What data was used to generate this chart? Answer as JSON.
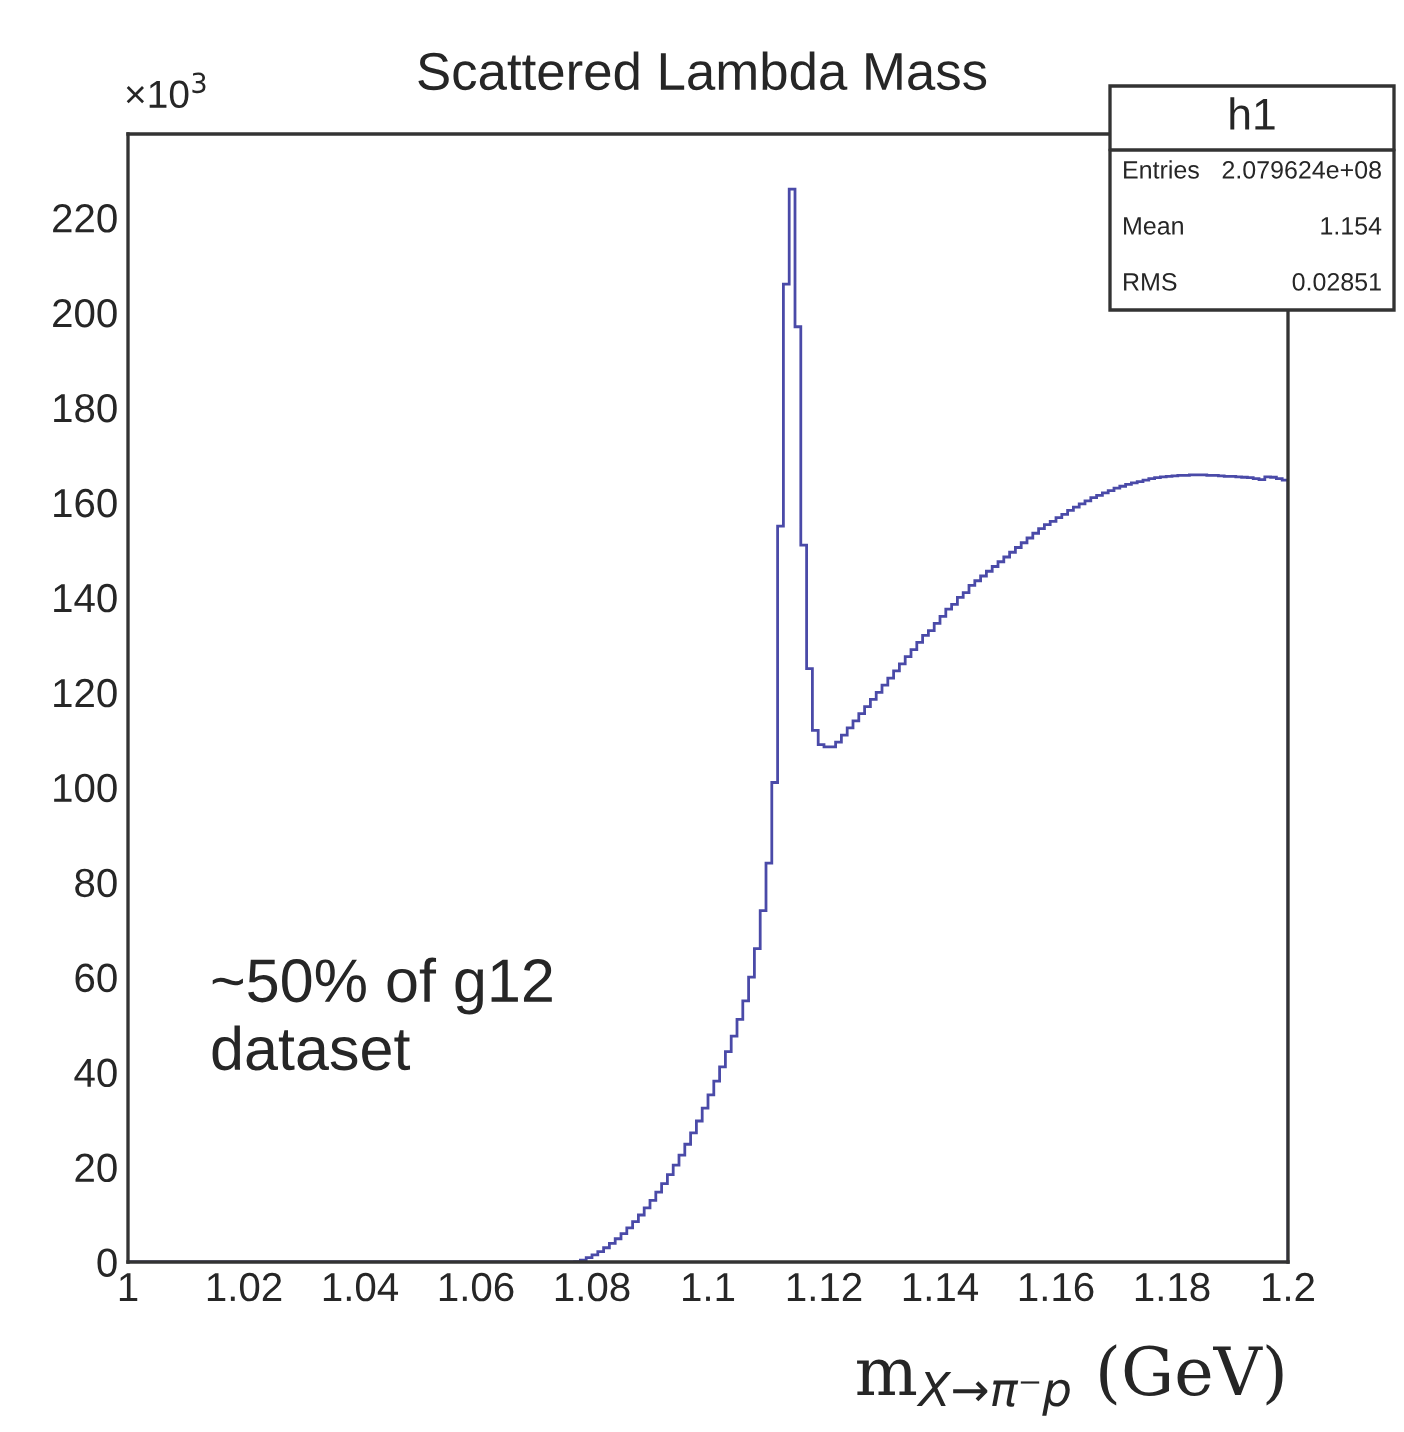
{
  "chart_data": {
    "type": "histogram",
    "title": "Scattered Lambda Mass",
    "xlabel": "m$_{X→π⁻p}$ (GeV)",
    "bins": [
      1.0,
      1.001,
      1.002,
      1.003,
      1.004,
      1.005,
      1.006,
      1.007,
      1.008,
      1.009,
      1.01,
      1.011,
      1.012,
      1.013,
      1.014,
      1.015,
      1.016,
      1.017,
      1.018,
      1.019,
      1.02,
      1.021,
      1.022,
      1.023,
      1.024,
      1.025,
      1.026,
      1.027,
      1.028,
      1.029,
      1.03,
      1.031,
      1.032,
      1.033,
      1.034,
      1.035,
      1.036,
      1.037,
      1.038,
      1.039,
      1.04,
      1.041,
      1.042,
      1.043,
      1.044,
      1.045,
      1.046,
      1.047,
      1.048,
      1.049,
      1.05,
      1.051,
      1.052,
      1.053,
      1.054,
      1.055,
      1.056,
      1.057,
      1.058,
      1.059,
      1.06,
      1.061,
      1.062,
      1.063,
      1.064,
      1.065,
      1.066,
      1.067,
      1.068,
      1.069,
      1.07,
      1.071,
      1.072,
      1.073,
      1.074,
      1.075,
      1.076,
      1.077,
      1.078,
      1.079,
      1.08,
      1.081,
      1.082,
      1.083,
      1.084,
      1.085,
      1.086,
      1.087,
      1.088,
      1.089,
      1.09,
      1.091,
      1.092,
      1.093,
      1.094,
      1.095,
      1.096,
      1.097,
      1.098,
      1.099,
      1.1,
      1.101,
      1.102,
      1.103,
      1.104,
      1.105,
      1.106,
      1.107,
      1.108,
      1.109,
      1.11,
      1.111,
      1.112,
      1.113,
      1.114,
      1.115,
      1.116,
      1.117,
      1.118,
      1.119,
      1.12,
      1.121,
      1.122,
      1.123,
      1.124,
      1.125,
      1.126,
      1.127,
      1.128,
      1.129,
      1.13,
      1.131,
      1.132,
      1.133,
      1.134,
      1.135,
      1.136,
      1.137,
      1.138,
      1.139,
      1.14,
      1.141,
      1.142,
      1.143,
      1.144,
      1.145,
      1.146,
      1.147,
      1.148,
      1.149,
      1.15,
      1.151,
      1.152,
      1.153,
      1.154,
      1.155,
      1.156,
      1.157,
      1.158,
      1.159,
      1.16,
      1.161,
      1.162,
      1.163,
      1.164,
      1.165,
      1.166,
      1.167,
      1.168,
      1.169,
      1.17,
      1.171,
      1.172,
      1.173,
      1.174,
      1.175,
      1.176,
      1.177,
      1.178,
      1.179,
      1.18,
      1.181,
      1.182,
      1.183,
      1.184,
      1.185,
      1.186,
      1.187,
      1.188,
      1.189,
      1.19,
      1.191,
      1.192,
      1.193,
      1.194,
      1.195,
      1.196,
      1.197,
      1.198,
      1.199,
      1.2
    ],
    "values": [
      0,
      0,
      0,
      0,
      0,
      0,
      0,
      0,
      0,
      0,
      0,
      0,
      0,
      0,
      0,
      0,
      0,
      0,
      0,
      0,
      0,
      0,
      0,
      0,
      0,
      0,
      0,
      0,
      0,
      0,
      0,
      0,
      0,
      0,
      0,
      0,
      0,
      0,
      0,
      0,
      0,
      0,
      0,
      0,
      0,
      0,
      0,
      0,
      0,
      0,
      0,
      0,
      0,
      0,
      0,
      0,
      0,
      0,
      0,
      0,
      0,
      0,
      0,
      0,
      0,
      0,
      0,
      0,
      0,
      0,
      0,
      0,
      0,
      0,
      0,
      0,
      0,
      0.1,
      0.4,
      0.9,
      1.5,
      2.2,
      3.0,
      3.9,
      4.9,
      6.0,
      7.2,
      8.5,
      9.9,
      11.4,
      13.0,
      14.7,
      16.5,
      18.4,
      20.4,
      22.5,
      24.8,
      27.2,
      29.7,
      32.4,
      35.2,
      38.1,
      41.1,
      44.3,
      47.6,
      51.1,
      55,
      60,
      66,
      74,
      84,
      101,
      155,
      206,
      226,
      197,
      151,
      125,
      112,
      109,
      108.5,
      108.5,
      109.5,
      111,
      112.5,
      114,
      115.5,
      117,
      118.5,
      120,
      121.5,
      123,
      124.5,
      126,
      127.5,
      129,
      130.5,
      132,
      133,
      134.5,
      136,
      137.5,
      138.5,
      140,
      141,
      142.5,
      143.5,
      144.5,
      145.5,
      146.5,
      147.5,
      148.5,
      149.5,
      150.5,
      151.5,
      152.5,
      153.5,
      154.5,
      155.3,
      156,
      156.8,
      157.5,
      158.3,
      159,
      159.7,
      160.3,
      161,
      161.5,
      162,
      162.5,
      163,
      163.4,
      163.8,
      164.1,
      164.4,
      164.7,
      165,
      165.2,
      165.4,
      165.5,
      165.6,
      165.7,
      165.7,
      165.8,
      165.8,
      165.8,
      165.7,
      165.7,
      165.6,
      165.5,
      165.5,
      165.4,
      165.3,
      165.2,
      165,
      164.8,
      165.4,
      165.3,
      165,
      164.7
    ],
    "color": "#4a4aa8",
    "xlim": [
      1,
      1.2
    ],
    "xticks": [
      1,
      1.02,
      1.04,
      1.06,
      1.08,
      1.1,
      1.12,
      1.14,
      1.16,
      1.18,
      1.2
    ],
    "ylim": [
      0,
      237.6
    ],
    "yticks": [
      0,
      20,
      40,
      60,
      80,
      100,
      120,
      140,
      160,
      180,
      200,
      220
    ],
    "grid": false,
    "annotations": [
      "×10$^{3}$",
      "h1",
      "Entries",
      "2.079624e+08",
      "Mean",
      "1.154",
      "RMS",
      "0.02851",
      "~50% of g12\ndataset"
    ]
  }
}
